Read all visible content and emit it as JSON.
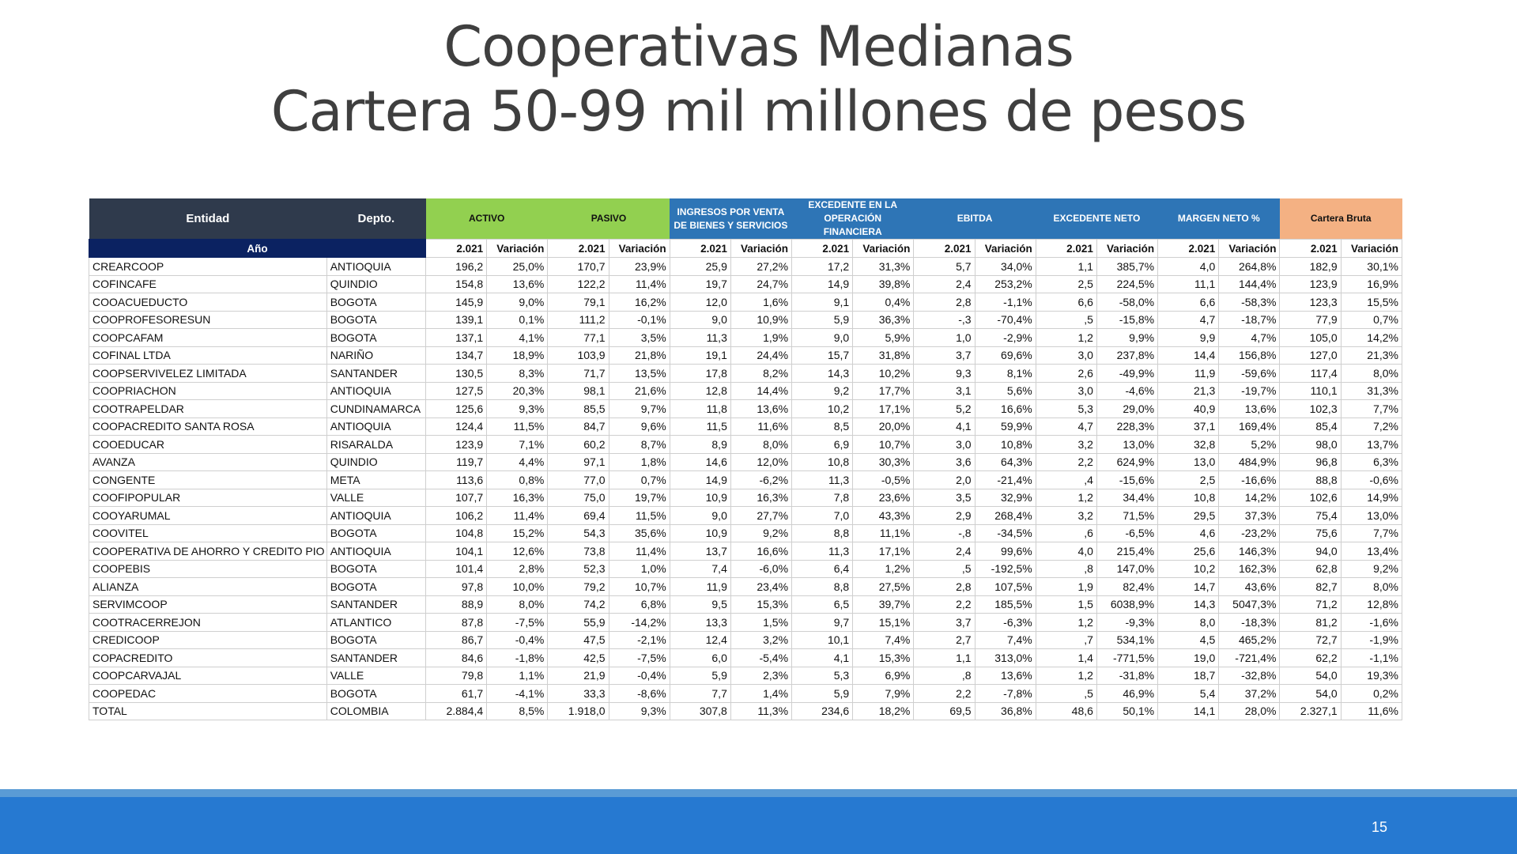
{
  "slide": {
    "title_line1": "Cooperativas Medianas",
    "title_line2": "Cartera 50-99 mil millones de pesos",
    "page_number": "15"
  },
  "colors": {
    "header_dark": "#2f3a4c",
    "header_green": "#92d050",
    "header_blue": "#2e75b6",
    "header_orange": "#f4b183",
    "year_row": "#0b2261",
    "footer": "#2679d1"
  },
  "table": {
    "headers": {
      "entidad": "Entidad",
      "depto": "Depto.",
      "activo": "ACTIVO",
      "pasivo": "PASIVO",
      "ingresos": "INGRESOS POR VENTA DE BIENES Y SERVICIOS",
      "excedente_operacion": "EXCEDENTE EN LA OPERACIÓN FINANCIERA",
      "ebitda": "EBITDA",
      "excedente_neto": "EXCEDENTE NETO",
      "margen_neto": "MARGEN NETO %",
      "cartera_bruta": "Cartera Bruta"
    },
    "subheaders": {
      "ano": "Año",
      "year": "2.021",
      "variacion": "Variación"
    },
    "rows": [
      {
        "entidad": "CREARCOOP",
        "depto": "ANTIOQUIA",
        "v": [
          "196,2",
          "25,0%",
          "170,7",
          "23,9%",
          "25,9",
          "27,2%",
          "17,2",
          "31,3%",
          "5,7",
          "34,0%",
          "1,1",
          "385,7%",
          "4,0",
          "264,8%",
          "182,9",
          "30,1%"
        ]
      },
      {
        "entidad": "COFINCAFE",
        "depto": "QUINDIO",
        "v": [
          "154,8",
          "13,6%",
          "122,2",
          "11,4%",
          "19,7",
          "24,7%",
          "14,9",
          "39,8%",
          "2,4",
          "253,2%",
          "2,5",
          "224,5%",
          "11,1",
          "144,4%",
          "123,9",
          "16,9%"
        ]
      },
      {
        "entidad": "COOACUEDUCTO",
        "depto": "BOGOTA",
        "v": [
          "145,9",
          "9,0%",
          "79,1",
          "16,2%",
          "12,0",
          "1,6%",
          "9,1",
          "0,4%",
          "2,8",
          "-1,1%",
          "6,6",
          "-58,0%",
          "6,6",
          "-58,3%",
          "123,3",
          "15,5%"
        ]
      },
      {
        "entidad": "COOPROFESORESUN",
        "depto": "BOGOTA",
        "v": [
          "139,1",
          "0,1%",
          "111,2",
          "-0,1%",
          "9,0",
          "10,9%",
          "5,9",
          "36,3%",
          "-,3",
          "-70,4%",
          ",5",
          "-15,8%",
          "4,7",
          "-18,7%",
          "77,9",
          "0,7%"
        ]
      },
      {
        "entidad": "COOPCAFAM",
        "depto": "BOGOTA",
        "v": [
          "137,1",
          "4,1%",
          "77,1",
          "3,5%",
          "11,3",
          "1,9%",
          "9,0",
          "5,9%",
          "1,0",
          "-2,9%",
          "1,2",
          "9,9%",
          "9,9",
          "4,7%",
          "105,0",
          "14,2%"
        ]
      },
      {
        "entidad": "COFINAL LTDA",
        "depto": "NARIÑO",
        "v": [
          "134,7",
          "18,9%",
          "103,9",
          "21,8%",
          "19,1",
          "24,4%",
          "15,7",
          "31,8%",
          "3,7",
          "69,6%",
          "3,0",
          "237,8%",
          "14,4",
          "156,8%",
          "127,0",
          "21,3%"
        ]
      },
      {
        "entidad": "COOPSERVIVELEZ LIMITADA",
        "depto": "SANTANDER",
        "v": [
          "130,5",
          "8,3%",
          "71,7",
          "13,5%",
          "17,8",
          "8,2%",
          "14,3",
          "10,2%",
          "9,3",
          "8,1%",
          "2,6",
          "-49,9%",
          "11,9",
          "-59,6%",
          "117,4",
          "8,0%"
        ]
      },
      {
        "entidad": "COOPRIACHON",
        "depto": "ANTIOQUIA",
        "v": [
          "127,5",
          "20,3%",
          "98,1",
          "21,6%",
          "12,8",
          "14,4%",
          "9,2",
          "17,7%",
          "3,1",
          "5,6%",
          "3,0",
          "-4,6%",
          "21,3",
          "-19,7%",
          "110,1",
          "31,3%"
        ]
      },
      {
        "entidad": "COOTRAPELDAR",
        "depto": "CUNDINAMARCA",
        "v": [
          "125,6",
          "9,3%",
          "85,5",
          "9,7%",
          "11,8",
          "13,6%",
          "10,2",
          "17,1%",
          "5,2",
          "16,6%",
          "5,3",
          "29,0%",
          "40,9",
          "13,6%",
          "102,3",
          "7,7%"
        ]
      },
      {
        "entidad": "COOPACREDITO SANTA ROSA",
        "depto": "ANTIOQUIA",
        "v": [
          "124,4",
          "11,5%",
          "84,7",
          "9,6%",
          "11,5",
          "11,6%",
          "8,5",
          "20,0%",
          "4,1",
          "59,9%",
          "4,7",
          "228,3%",
          "37,1",
          "169,4%",
          "85,4",
          "7,2%"
        ]
      },
      {
        "entidad": "COOEDUCAR",
        "depto": "RISARALDA",
        "v": [
          "123,9",
          "7,1%",
          "60,2",
          "8,7%",
          "8,9",
          "8,0%",
          "6,9",
          "10,7%",
          "3,0",
          "10,8%",
          "3,2",
          "13,0%",
          "32,8",
          "5,2%",
          "98,0",
          "13,7%"
        ]
      },
      {
        "entidad": "AVANZA",
        "depto": "QUINDIO",
        "v": [
          "119,7",
          "4,4%",
          "97,1",
          "1,8%",
          "14,6",
          "12,0%",
          "10,8",
          "30,3%",
          "3,6",
          "64,3%",
          "2,2",
          "624,9%",
          "13,0",
          "484,9%",
          "96,8",
          "6,3%"
        ]
      },
      {
        "entidad": "CONGENTE",
        "depto": "META",
        "v": [
          "113,6",
          "0,8%",
          "77,0",
          "0,7%",
          "14,9",
          "-6,2%",
          "11,3",
          "-0,5%",
          "2,0",
          "-21,4%",
          ",4",
          "-15,6%",
          "2,5",
          "-16,6%",
          "88,8",
          "-0,6%"
        ]
      },
      {
        "entidad": "COOFIPOPULAR",
        "depto": "VALLE",
        "v": [
          "107,7",
          "16,3%",
          "75,0",
          "19,7%",
          "10,9",
          "16,3%",
          "7,8",
          "23,6%",
          "3,5",
          "32,9%",
          "1,2",
          "34,4%",
          "10,8",
          "14,2%",
          "102,6",
          "14,9%"
        ]
      },
      {
        "entidad": "COOYARUMAL",
        "depto": "ANTIOQUIA",
        "v": [
          "106,2",
          "11,4%",
          "69,4",
          "11,5%",
          "9,0",
          "27,7%",
          "7,0",
          "43,3%",
          "2,9",
          "268,4%",
          "3,2",
          "71,5%",
          "29,5",
          "37,3%",
          "75,4",
          "13,0%"
        ]
      },
      {
        "entidad": "COOVITEL",
        "depto": "BOGOTA",
        "v": [
          "104,8",
          "15,2%",
          "54,3",
          "35,6%",
          "10,9",
          "9,2%",
          "8,8",
          "11,1%",
          "-,8",
          "-34,5%",
          ",6",
          "-6,5%",
          "4,6",
          "-23,2%",
          "75,6",
          "7,7%"
        ]
      },
      {
        "entidad": "COOPERATIVA DE AHORRO Y CREDITO PIO XII",
        "depto": "ANTIOQUIA",
        "v": [
          "104,1",
          "12,6%",
          "73,8",
          "11,4%",
          "13,7",
          "16,6%",
          "11,3",
          "17,1%",
          "2,4",
          "99,6%",
          "4,0",
          "215,4%",
          "25,6",
          "146,3%",
          "94,0",
          "13,4%"
        ]
      },
      {
        "entidad": "COOPEBIS",
        "depto": "BOGOTA",
        "v": [
          "101,4",
          "2,8%",
          "52,3",
          "1,0%",
          "7,4",
          "-6,0%",
          "6,4",
          "1,2%",
          ",5",
          "-192,5%",
          ",8",
          "147,0%",
          "10,2",
          "162,3%",
          "62,8",
          "9,2%"
        ]
      },
      {
        "entidad": "ALIANZA",
        "depto": "BOGOTA",
        "v": [
          "97,8",
          "10,0%",
          "79,2",
          "10,7%",
          "11,9",
          "23,4%",
          "8,8",
          "27,5%",
          "2,8",
          "107,5%",
          "1,9",
          "82,4%",
          "14,7",
          "43,6%",
          "82,7",
          "8,0%"
        ]
      },
      {
        "entidad": "SERVIMCOOP",
        "depto": "SANTANDER",
        "v": [
          "88,9",
          "8,0%",
          "74,2",
          "6,8%",
          "9,5",
          "15,3%",
          "6,5",
          "39,7%",
          "2,2",
          "185,5%",
          "1,5",
          "6038,9%",
          "14,3",
          "5047,3%",
          "71,2",
          "12,8%"
        ]
      },
      {
        "entidad": "COOTRACERREJON",
        "depto": "ATLANTICO",
        "v": [
          "87,8",
          "-7,5%",
          "55,9",
          "-14,2%",
          "13,3",
          "1,5%",
          "9,7",
          "15,1%",
          "3,7",
          "-6,3%",
          "1,2",
          "-9,3%",
          "8,0",
          "-18,3%",
          "81,2",
          "-1,6%"
        ]
      },
      {
        "entidad": "CREDICOOP",
        "depto": "BOGOTA",
        "v": [
          "86,7",
          "-0,4%",
          "47,5",
          "-2,1%",
          "12,4",
          "3,2%",
          "10,1",
          "7,4%",
          "2,7",
          "7,4%",
          ",7",
          "534,1%",
          "4,5",
          "465,2%",
          "72,7",
          "-1,9%"
        ]
      },
      {
        "entidad": "COPACREDITO",
        "depto": "SANTANDER",
        "v": [
          "84,6",
          "-1,8%",
          "42,5",
          "-7,5%",
          "6,0",
          "-5,4%",
          "4,1",
          "15,3%",
          "1,1",
          "313,0%",
          "1,4",
          "-771,5%",
          "19,0",
          "-721,4%",
          "62,2",
          "-1,1%"
        ]
      },
      {
        "entidad": "COOPCARVAJAL",
        "depto": "VALLE",
        "v": [
          "79,8",
          "1,1%",
          "21,9",
          "-0,4%",
          "5,9",
          "2,3%",
          "5,3",
          "6,9%",
          ",8",
          "13,6%",
          "1,2",
          "-31,8%",
          "18,7",
          "-32,8%",
          "54,0",
          "19,3%"
        ]
      },
      {
        "entidad": "COOPEDAC",
        "depto": "BOGOTA",
        "v": [
          "61,7",
          "-4,1%",
          "33,3",
          "-8,6%",
          "7,7",
          "1,4%",
          "5,9",
          "7,9%",
          "2,2",
          "-7,8%",
          ",5",
          "46,9%",
          "5,4",
          "37,2%",
          "54,0",
          "0,2%"
        ]
      },
      {
        "entidad": "TOTAL",
        "depto": "COLOMBIA",
        "v": [
          "2.884,4",
          "8,5%",
          "1.918,0",
          "9,3%",
          "307,8",
          "11,3%",
          "234,6",
          "18,2%",
          "69,5",
          "36,8%",
          "48,6",
          "50,1%",
          "14,1",
          "28,0%",
          "2.327,1",
          "11,6%"
        ]
      }
    ]
  }
}
